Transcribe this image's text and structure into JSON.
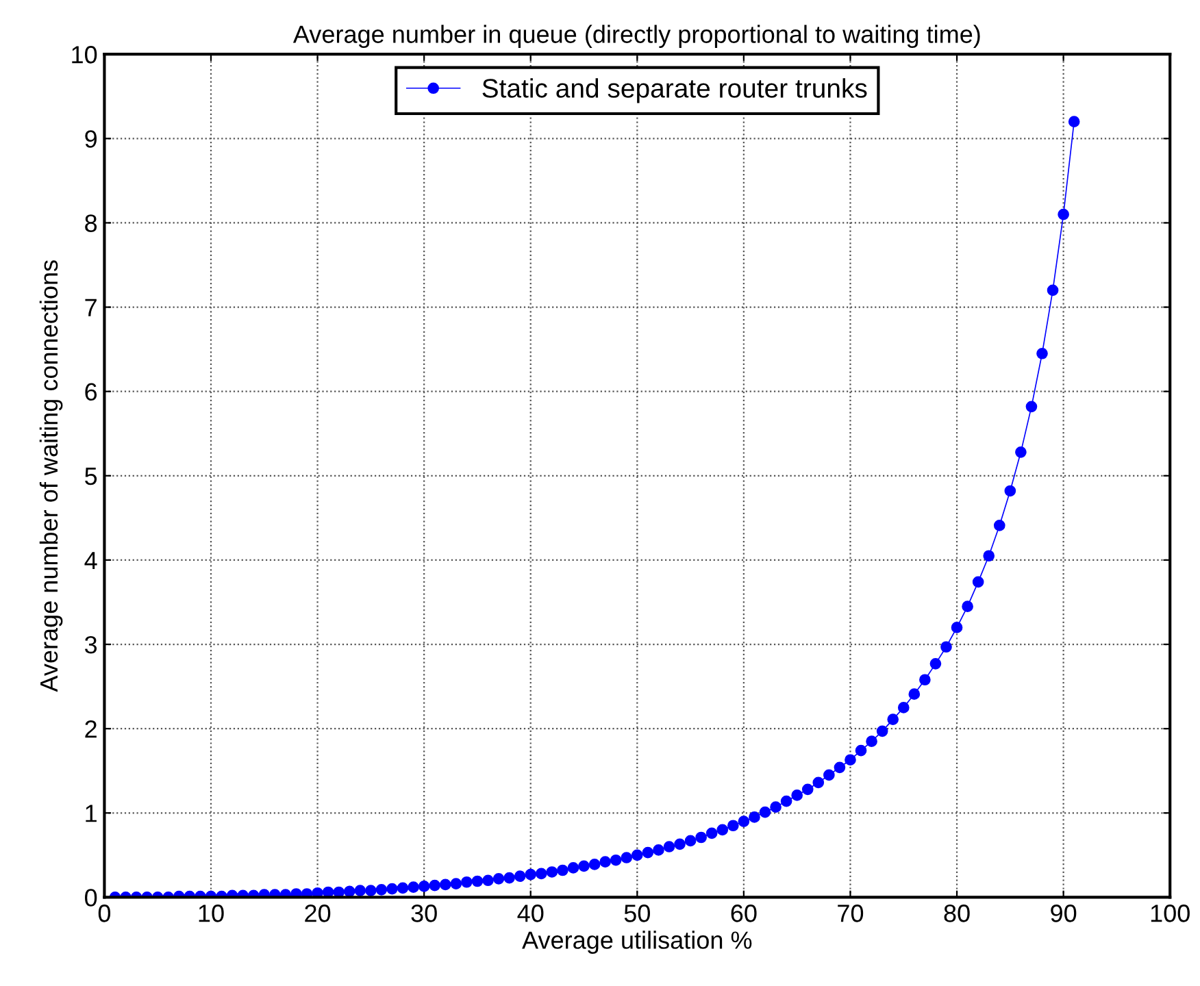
{
  "chart_data": {
    "type": "line",
    "title": "Average number in queue (directly proportional to waiting time)",
    "xlabel": "Average utilisation %",
    "ylabel": "Average number of waiting connections",
    "x": [
      1,
      2,
      3,
      4,
      5,
      6,
      7,
      8,
      9,
      10,
      11,
      12,
      13,
      14,
      15,
      16,
      17,
      18,
      19,
      20,
      21,
      22,
      23,
      24,
      25,
      26,
      27,
      28,
      29,
      30,
      31,
      32,
      33,
      34,
      35,
      36,
      37,
      38,
      39,
      40,
      41,
      42,
      43,
      44,
      45,
      46,
      47,
      48,
      49,
      50,
      51,
      52,
      53,
      54,
      55,
      56,
      57,
      58,
      59,
      60,
      61,
      62,
      63,
      64,
      65,
      66,
      67,
      68,
      69,
      70,
      71,
      72,
      73,
      74,
      75,
      76,
      77,
      78,
      79,
      80,
      81,
      82,
      83,
      84,
      85,
      86,
      87,
      88,
      89,
      90,
      91
    ],
    "series": [
      {
        "name": "Static and separate router trunks",
        "color": "#0000ff",
        "values": [
          0.0,
          0.0,
          0.0,
          0.0,
          0.0,
          0.0,
          0.01,
          0.01,
          0.01,
          0.01,
          0.01,
          0.02,
          0.02,
          0.02,
          0.03,
          0.03,
          0.03,
          0.04,
          0.04,
          0.05,
          0.06,
          0.06,
          0.07,
          0.08,
          0.08,
          0.09,
          0.1,
          0.11,
          0.12,
          0.13,
          0.14,
          0.15,
          0.16,
          0.18,
          0.19,
          0.2,
          0.22,
          0.23,
          0.25,
          0.27,
          0.28,
          0.3,
          0.32,
          0.35,
          0.37,
          0.39,
          0.42,
          0.44,
          0.47,
          0.5,
          0.53,
          0.56,
          0.6,
          0.63,
          0.67,
          0.71,
          0.76,
          0.8,
          0.85,
          0.9,
          0.95,
          1.01,
          1.07,
          1.14,
          1.21,
          1.28,
          1.36,
          1.45,
          1.54,
          1.63,
          1.74,
          1.85,
          1.97,
          2.11,
          2.25,
          2.41,
          2.58,
          2.77,
          2.97,
          3.2,
          3.45,
          3.74,
          4.05,
          4.41,
          4.82,
          5.28,
          5.82,
          6.45,
          7.2,
          8.1,
          9.2
        ]
      }
    ],
    "xlim": [
      0,
      100
    ],
    "ylim": [
      0,
      10
    ],
    "xticks": [
      0,
      10,
      20,
      30,
      40,
      50,
      60,
      70,
      80,
      90,
      100
    ],
    "yticks": [
      0,
      1,
      2,
      3,
      4,
      5,
      6,
      7,
      8,
      9,
      10
    ],
    "grid": true,
    "legend": "top",
    "marker": "circle",
    "line_style": "solid"
  }
}
